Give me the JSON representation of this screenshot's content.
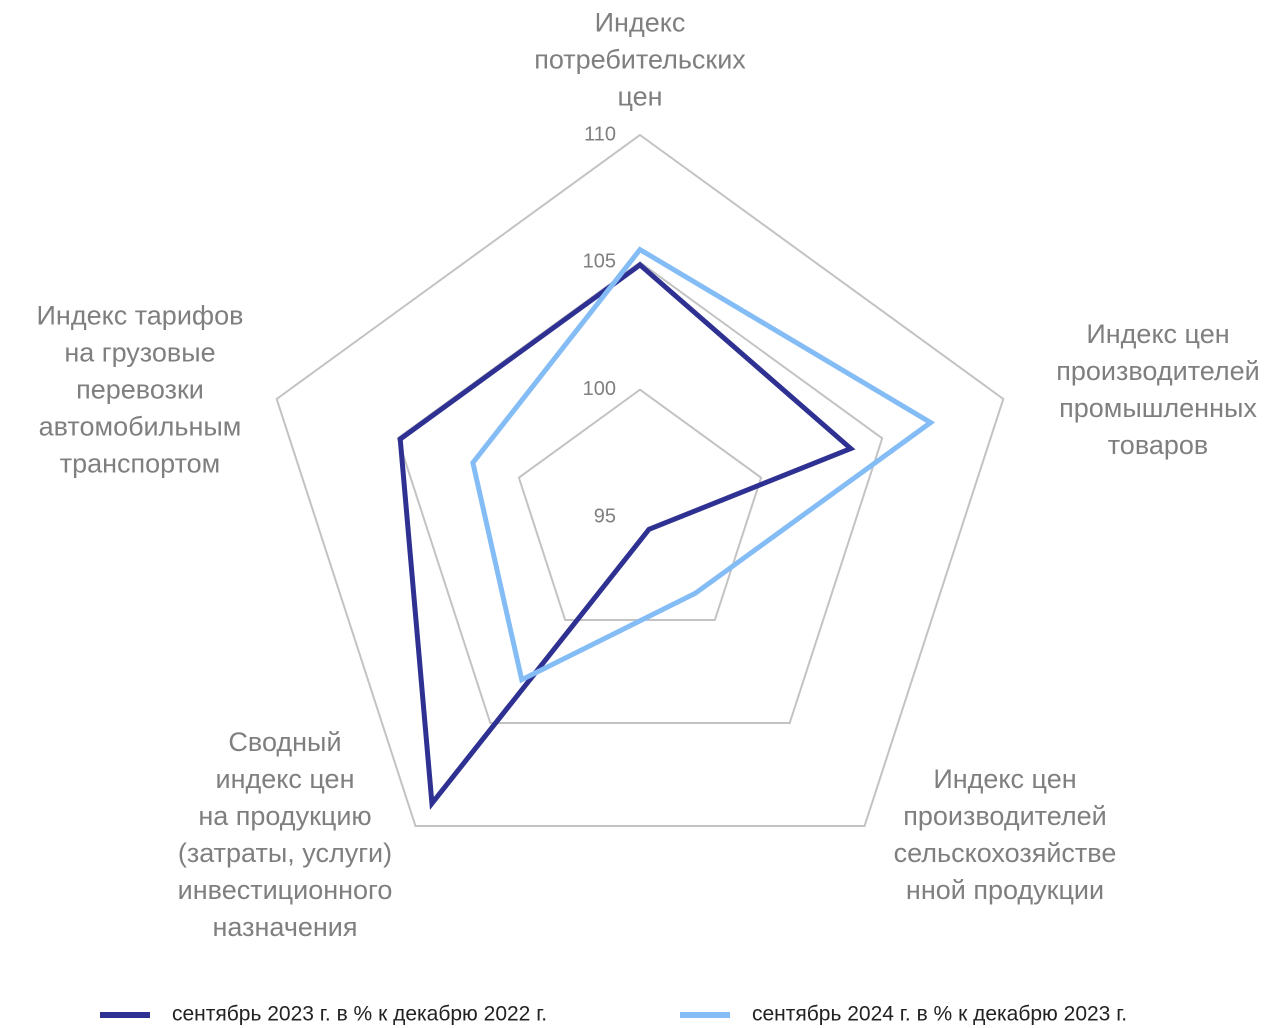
{
  "chart_data": {
    "type": "radar",
    "categories": [
      "Индекс\nпотребительских\nцен",
      "Индекс цен\nпроизводителей\nпромышленных\nтоваров",
      "Индекс цен\nпроизводителей\nсельскохозяйстве\nнной продукции",
      "Сводный\nиндекс цен\nна продукцию\n(затраты, услуги)\nинвестиционного\nназначения",
      "Индекс тарифов\nна грузовые\nперевозки\nавтомобильным\nтранспортом"
    ],
    "series": [
      {
        "name": "сентябрь 2023 г. в %  к декабрю 2022 г.",
        "color": "#2e3192",
        "values": [
          104.9,
          103.7,
          95.6,
          108.9,
          104.9
        ]
      },
      {
        "name": "сентябрь 2024 г. в %  к декабрю 2023 г.",
        "color": "#84bcf5",
        "values": [
          105.5,
          107.0,
          98.7,
          102.9,
          101.9
        ]
      }
    ],
    "ylim": [
      95,
      110
    ],
    "yticks": [
      95,
      100,
      105,
      110
    ],
    "grid": true,
    "legend": "bottom"
  }
}
